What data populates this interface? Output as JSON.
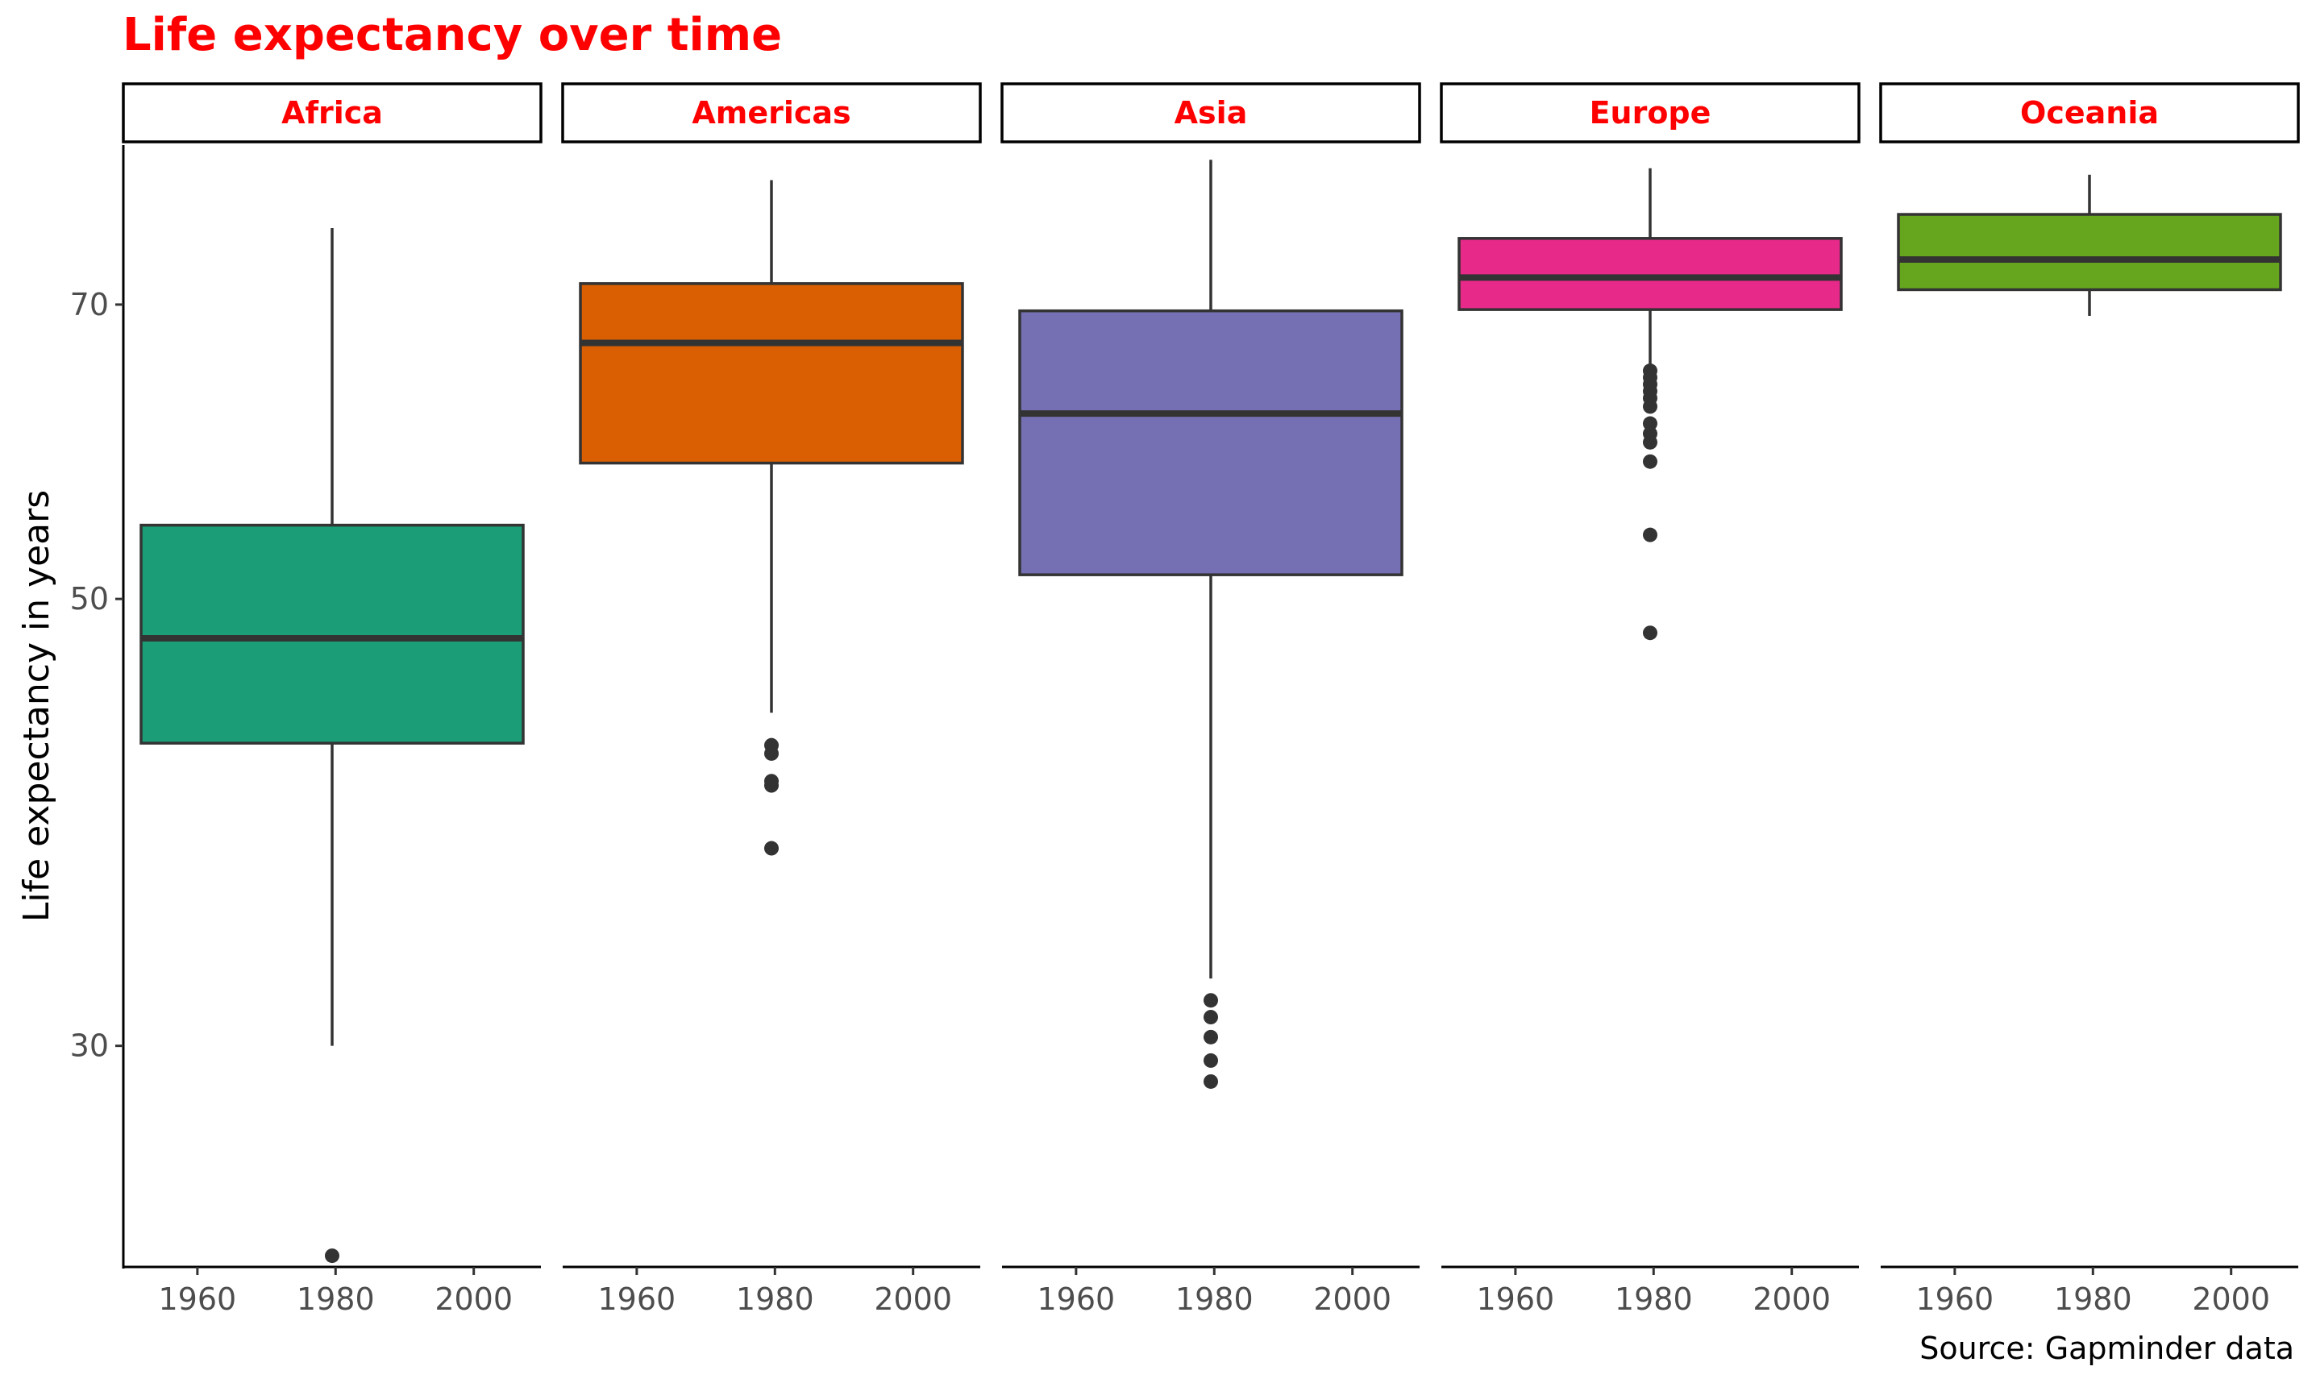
{
  "chart_data": {
    "type": "boxplot",
    "title": "Life expectancy over time",
    "caption": "Source: Gapminder data",
    "xlabel": "",
    "ylabel": "Life expectancy in years",
    "y_scale": "log",
    "y_ticks": [
      30,
      50,
      70
    ],
    "x_ticks": [
      1960,
      1980,
      2000
    ],
    "x_range": [
      1952,
      2007
    ],
    "y_range": [
      23.3,
      84.0
    ],
    "x_position": 1979.5,
    "colors": {
      "title": "#ff0000",
      "strip_text": "#ff0000",
      "box_outline": "#333333"
    },
    "facets": [
      {
        "name": "Africa",
        "color": "#1b9e77",
        "whisker_min": 30.0,
        "q1": 42.4,
        "median": 47.8,
        "q3": 54.4,
        "whisker_max": 76.4,
        "outliers": [
          23.6
        ]
      },
      {
        "name": "Americas",
        "color": "#d95f02",
        "whisker_min": 43.9,
        "q1": 58.4,
        "median": 67.0,
        "q3": 71.7,
        "whisker_max": 80.7,
        "outliers": [
          42.3,
          41.9,
          40.6,
          40.4,
          37.6
        ]
      },
      {
        "name": "Asia",
        "color": "#7570b3",
        "whisker_min": 32.4,
        "q1": 51.4,
        "median": 61.8,
        "q3": 69.5,
        "whisker_max": 82.6,
        "outliers": [
          31.6,
          31.0,
          30.3,
          29.5,
          28.8
        ]
      },
      {
        "name": "Europe",
        "color": "#e7298a",
        "whisker_min": 65.0,
        "q1": 69.6,
        "median": 72.2,
        "q3": 75.5,
        "whisker_max": 81.8,
        "outliers": [
          64.9,
          64.4,
          63.9,
          63.4,
          62.9,
          62.3,
          61.1,
          60.4,
          59.8,
          58.5,
          53.8,
          48.1
        ]
      },
      {
        "name": "Oceania",
        "color": "#66a61e",
        "whisker_min": 69.1,
        "q1": 71.2,
        "median": 73.7,
        "q3": 77.6,
        "whisker_max": 81.2,
        "outliers": []
      }
    ]
  }
}
